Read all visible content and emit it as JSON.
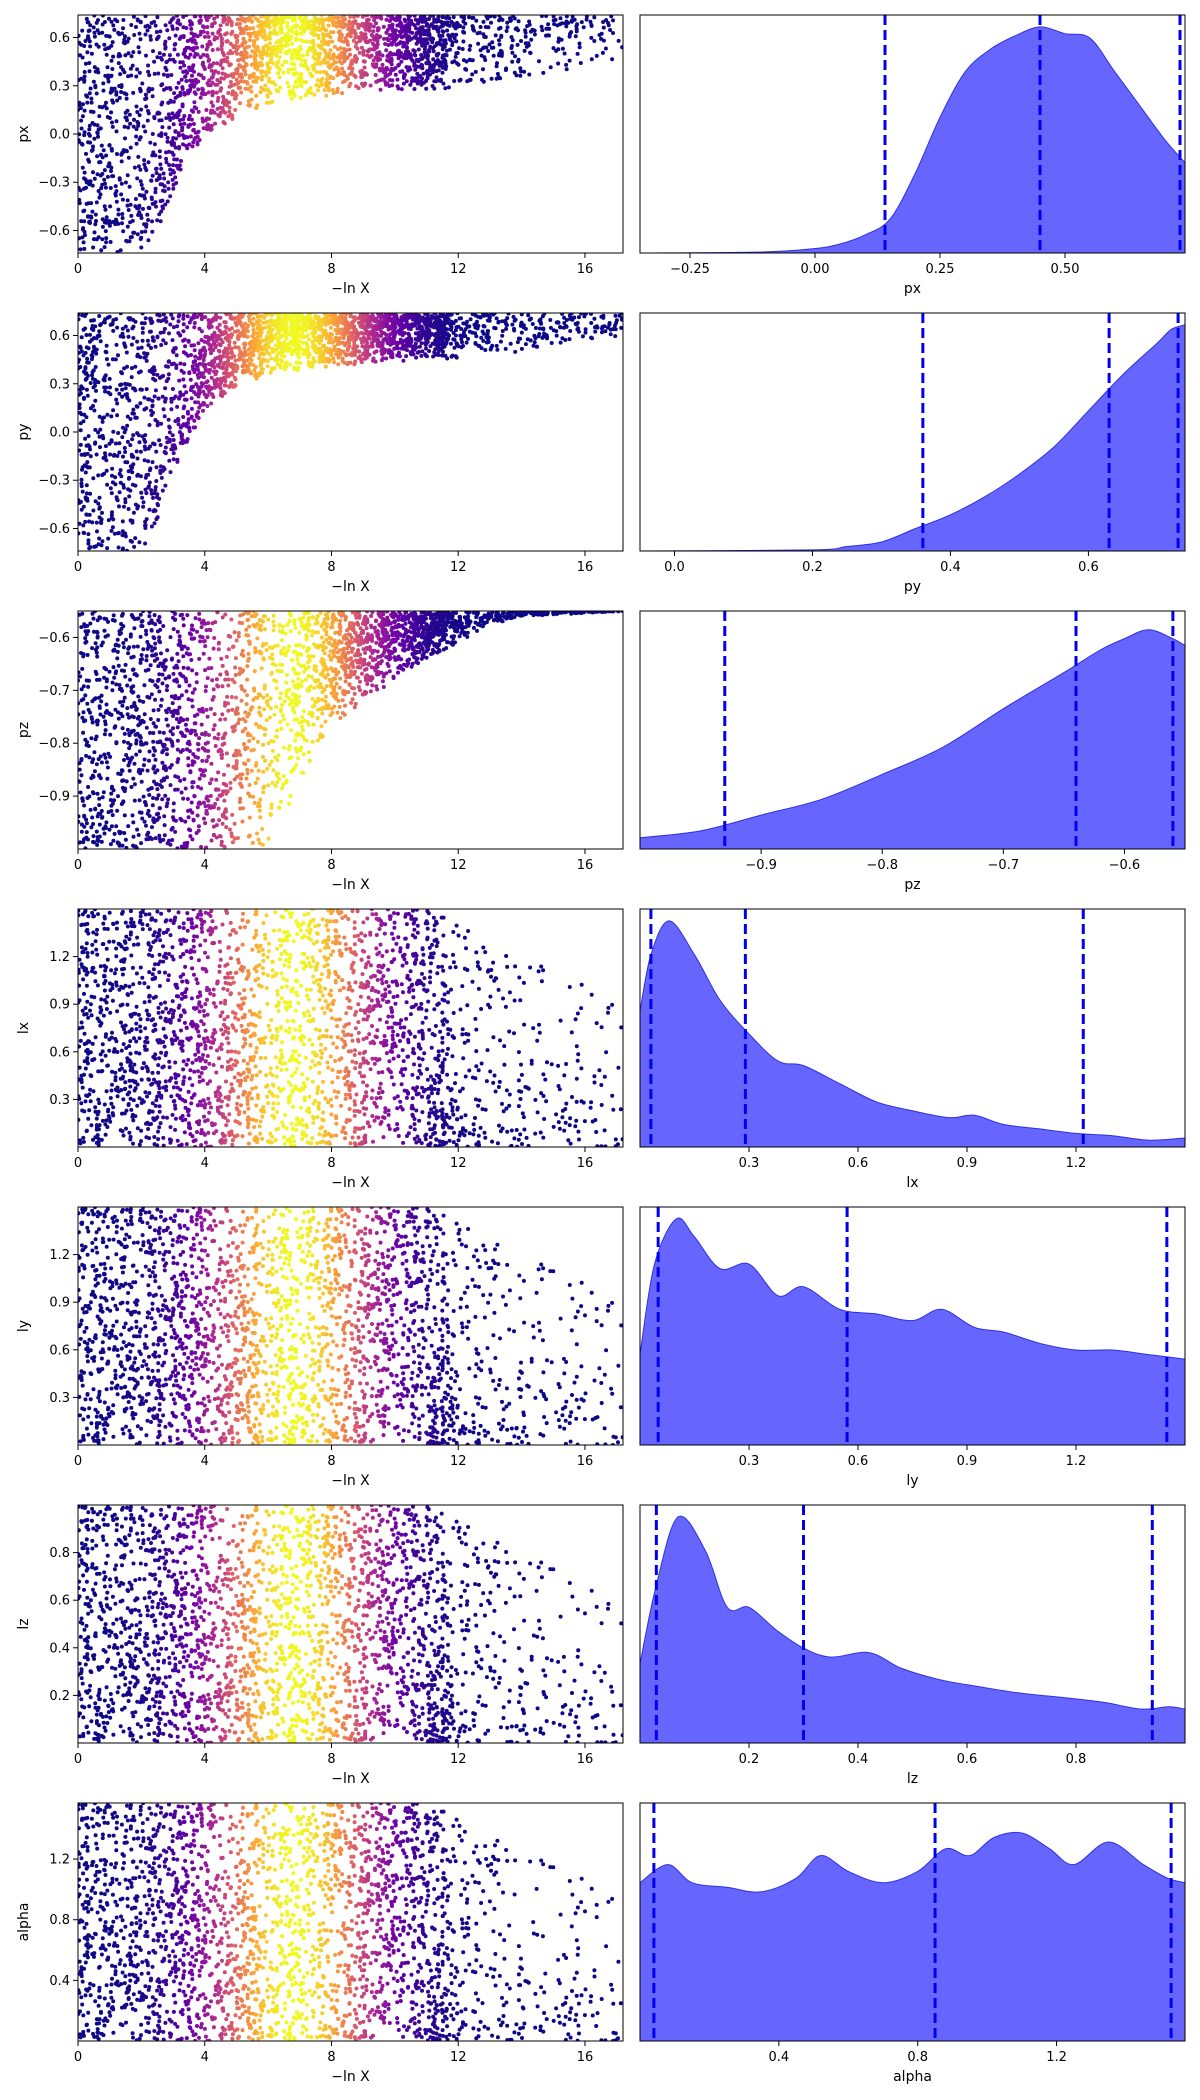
{
  "colors": {
    "marginal_fill": "#6666ff",
    "marginal_edge": "#2f2fe0",
    "quantile_line": "#0000ee",
    "colormap": [
      "#0d0887",
      "#6a00a8",
      "#b12a90",
      "#e16462",
      "#fca636",
      "#f0f921"
    ]
  },
  "chart_data": [
    {
      "type": "scatter",
      "param": "px",
      "ylabel": "px",
      "xlabel": "−ln X",
      "xlim": [
        0,
        17.2
      ],
      "ylim": [
        -0.74,
        0.74
      ],
      "xticks": [
        0,
        4,
        8,
        12,
        16
      ],
      "yticks": [
        -0.6,
        -0.3,
        0.0,
        0.3,
        0.6
      ],
      "ytick_labels": [
        "−0.6",
        "−0.3",
        "0.0",
        "0.3",
        "0.6"
      ],
      "envelope": [
        [
          0,
          -0.74
        ],
        [
          2,
          -0.74
        ],
        [
          2.5,
          -0.6
        ],
        [
          3,
          -0.35
        ],
        [
          3.5,
          -0.15
        ],
        [
          4,
          0.0
        ],
        [
          5,
          0.1
        ],
        [
          6,
          0.18
        ],
        [
          7,
          0.22
        ],
        [
          8,
          0.24
        ],
        [
          10,
          0.26
        ],
        [
          12,
          0.28
        ],
        [
          14,
          0.35
        ],
        [
          17.2,
          0.45
        ]
      ],
      "tail_end": 17.2,
      "color_peak": 6.8,
      "color_width": 2.6
    },
    {
      "type": "area",
      "param": "px",
      "xlabel": "px",
      "xlim": [
        -0.35,
        0.74
      ],
      "xticks": [
        -0.25,
        0.0,
        0.25,
        0.5
      ],
      "xtick_labels": [
        "−0.25",
        "0.00",
        "0.25",
        "0.50"
      ],
      "x": [
        -0.35,
        -0.1,
        0.0,
        0.05,
        0.1,
        0.15,
        0.2,
        0.25,
        0.3,
        0.35,
        0.4,
        0.45,
        0.5,
        0.55,
        0.6,
        0.65,
        0.7,
        0.74
      ],
      "y": [
        0,
        0.005,
        0.02,
        0.04,
        0.08,
        0.15,
        0.35,
        0.6,
        0.8,
        0.9,
        0.96,
        1.0,
        0.97,
        0.95,
        0.8,
        0.65,
        0.5,
        0.4
      ],
      "quantiles": [
        0.14,
        0.45,
        0.73
      ]
    },
    {
      "type": "scatter",
      "param": "py",
      "ylabel": "py",
      "xlabel": "−ln X",
      "xlim": [
        0,
        17.2
      ],
      "ylim": [
        -0.74,
        0.74
      ],
      "xticks": [
        0,
        4,
        8,
        12,
        16
      ],
      "yticks": [
        -0.6,
        -0.3,
        0.0,
        0.3,
        0.6
      ],
      "ytick_labels": [
        "−0.6",
        "−0.3",
        "0.0",
        "0.3",
        "0.6"
      ],
      "envelope": [
        [
          0,
          -0.74
        ],
        [
          2,
          -0.74
        ],
        [
          2.5,
          -0.55
        ],
        [
          3,
          -0.3
        ],
        [
          3.5,
          -0.05
        ],
        [
          4,
          0.15
        ],
        [
          5,
          0.28
        ],
        [
          6,
          0.34
        ],
        [
          7,
          0.38
        ],
        [
          8,
          0.4
        ],
        [
          10,
          0.44
        ],
        [
          12,
          0.46
        ],
        [
          14,
          0.5
        ],
        [
          17.2,
          0.6
        ]
      ],
      "tail_end": 17.2,
      "color_peak": 6.8,
      "color_width": 2.6
    },
    {
      "type": "area",
      "param": "py",
      "xlabel": "py",
      "xlim": [
        -0.05,
        0.74
      ],
      "xticks": [
        0.0,
        0.2,
        0.4,
        0.6
      ],
      "xtick_labels": [
        "0.0",
        "0.2",
        "0.4",
        "0.6"
      ],
      "x": [
        -0.05,
        0.2,
        0.25,
        0.3,
        0.35,
        0.4,
        0.45,
        0.5,
        0.55,
        0.6,
        0.65,
        0.7,
        0.72,
        0.74
      ],
      "y": [
        0,
        0.005,
        0.02,
        0.04,
        0.1,
        0.16,
        0.24,
        0.34,
        0.46,
        0.62,
        0.78,
        0.92,
        0.98,
        1.0
      ],
      "quantiles": [
        0.36,
        0.63,
        0.73
      ]
    },
    {
      "type": "scatter",
      "param": "pz",
      "ylabel": "pz",
      "xlabel": "−ln X",
      "xlim": [
        0,
        17.2
      ],
      "ylim": [
        -1.0,
        -0.55
      ],
      "xticks": [
        0,
        4,
        8,
        12,
        16
      ],
      "yticks": [
        -0.9,
        -0.8,
        -0.7,
        -0.6
      ],
      "ytick_labels": [
        "−0.9",
        "−0.8",
        "−0.7",
        "−0.6"
      ],
      "envelope": [
        [
          0,
          -1.0
        ],
        [
          6,
          -1.0
        ],
        [
          6.5,
          -0.95
        ],
        [
          7,
          -0.88
        ],
        [
          7.5,
          -0.82
        ],
        [
          8,
          -0.77
        ],
        [
          9,
          -0.72
        ],
        [
          10,
          -0.68
        ],
        [
          11,
          -0.64
        ],
        [
          12,
          -0.61
        ],
        [
          13,
          -0.58
        ],
        [
          14,
          -0.56
        ],
        [
          17.2,
          -0.55
        ]
      ],
      "tail_end": 17.2,
      "color_peak": 6.8,
      "color_width": 2.6
    },
    {
      "type": "area",
      "param": "pz",
      "xlabel": "pz",
      "xlim": [
        -1.0,
        -0.55
      ],
      "xticks": [
        -0.9,
        -0.8,
        -0.7,
        -0.6
      ],
      "xtick_labels": [
        "−0.9",
        "−0.8",
        "−0.7",
        "−0.6"
      ],
      "x": [
        -1.0,
        -0.95,
        -0.9,
        -0.85,
        -0.8,
        -0.75,
        -0.7,
        -0.65,
        -0.62,
        -0.6,
        -0.58,
        -0.56,
        -0.55
      ],
      "y": [
        0.05,
        0.08,
        0.15,
        0.22,
        0.33,
        0.45,
        0.62,
        0.78,
        0.88,
        0.93,
        0.97,
        0.93,
        0.9
      ],
      "quantiles": [
        -0.93,
        -0.64,
        -0.56
      ]
    },
    {
      "type": "scatter",
      "param": "lx",
      "ylabel": "lx",
      "xlabel": "−ln X",
      "xlim": [
        0,
        17.2
      ],
      "ylim": [
        0.0,
        1.5
      ],
      "xticks": [
        0,
        4,
        8,
        12,
        16
      ],
      "yticks": [
        0.3,
        0.6,
        0.9,
        1.2
      ],
      "ytick_labels": [
        "0.3",
        "0.6",
        "0.9",
        "1.2"
      ],
      "envelope": [
        [
          0,
          0
        ],
        [
          17.2,
          0
        ]
      ],
      "tail_end": 17.2,
      "color_peak": 6.8,
      "color_width": 2.6
    },
    {
      "type": "area",
      "param": "lx",
      "xlabel": "lx",
      "xlim": [
        0.0,
        1.5
      ],
      "xticks": [
        0.3,
        0.6,
        0.9,
        1.2
      ],
      "xtick_labels": [
        "0.3",
        "0.6",
        "0.9",
        "1.2"
      ],
      "x": [
        0.0,
        0.03,
        0.08,
        0.15,
        0.22,
        0.3,
        0.38,
        0.45,
        0.55,
        0.65,
        0.75,
        0.85,
        0.92,
        1.0,
        1.1,
        1.2,
        1.3,
        1.4,
        1.5
      ],
      "y": [
        0.6,
        0.85,
        1.0,
        0.85,
        0.65,
        0.5,
        0.38,
        0.36,
        0.28,
        0.2,
        0.16,
        0.13,
        0.14,
        0.1,
        0.08,
        0.06,
        0.05,
        0.03,
        0.04
      ],
      "quantiles": [
        0.03,
        0.29,
        1.22
      ]
    },
    {
      "type": "scatter",
      "param": "ly",
      "ylabel": "ly",
      "xlabel": "−ln X",
      "xlim": [
        0,
        17.2
      ],
      "ylim": [
        0.0,
        1.5
      ],
      "xticks": [
        0,
        4,
        8,
        12,
        16
      ],
      "yticks": [
        0.3,
        0.6,
        0.9,
        1.2
      ],
      "ytick_labels": [
        "0.3",
        "0.6",
        "0.9",
        "1.2"
      ],
      "envelope": [
        [
          0,
          0
        ],
        [
          17.2,
          0
        ]
      ],
      "tail_end": 17.2,
      "color_peak": 6.8,
      "color_width": 2.6
    },
    {
      "type": "area",
      "param": "ly",
      "xlabel": "ly",
      "xlim": [
        0.0,
        1.5
      ],
      "xticks": [
        0.3,
        0.6,
        0.9,
        1.2
      ],
      "xtick_labels": [
        "0.3",
        "0.6",
        "0.9",
        "1.2"
      ],
      "x": [
        0.0,
        0.04,
        0.1,
        0.15,
        0.22,
        0.3,
        0.38,
        0.45,
        0.55,
        0.65,
        0.75,
        0.83,
        0.92,
        1.0,
        1.1,
        1.2,
        1.3,
        1.4,
        1.5
      ],
      "y": [
        0.4,
        0.8,
        1.0,
        0.92,
        0.78,
        0.8,
        0.66,
        0.7,
        0.6,
        0.58,
        0.55,
        0.6,
        0.52,
        0.5,
        0.45,
        0.42,
        0.42,
        0.4,
        0.38
      ],
      "quantiles": [
        0.05,
        0.57,
        1.45
      ]
    },
    {
      "type": "scatter",
      "param": "lz",
      "ylabel": "lz",
      "xlabel": "−ln X",
      "xlim": [
        0,
        17.2
      ],
      "ylim": [
        0.0,
        1.0
      ],
      "xticks": [
        0,
        4,
        8,
        12,
        16
      ],
      "yticks": [
        0.2,
        0.4,
        0.6,
        0.8
      ],
      "ytick_labels": [
        "0.2",
        "0.4",
        "0.6",
        "0.8"
      ],
      "envelope": [
        [
          0,
          0
        ],
        [
          17.2,
          0
        ]
      ],
      "tail_end": 17.2,
      "color_peak": 6.8,
      "color_width": 2.6
    },
    {
      "type": "area",
      "param": "lz",
      "xlabel": "lz",
      "xlim": [
        0.0,
        1.0
      ],
      "xticks": [
        0.2,
        0.4,
        0.6,
        0.8
      ],
      "xtick_labels": [
        "0.2",
        "0.4",
        "0.6",
        "0.8"
      ],
      "x": [
        0.0,
        0.03,
        0.07,
        0.12,
        0.16,
        0.2,
        0.25,
        0.3,
        0.35,
        0.42,
        0.48,
        0.55,
        0.62,
        0.7,
        0.78,
        0.85,
        0.92,
        0.97,
        1.0
      ],
      "y": [
        0.35,
        0.7,
        1.0,
        0.85,
        0.6,
        0.6,
        0.5,
        0.42,
        0.38,
        0.4,
        0.33,
        0.28,
        0.25,
        0.22,
        0.2,
        0.18,
        0.15,
        0.16,
        0.15
      ],
      "quantiles": [
        0.03,
        0.3,
        0.94
      ]
    },
    {
      "type": "scatter",
      "param": "alpha",
      "ylabel": "alpha",
      "xlabel": "−ln X",
      "xlim": [
        0,
        17.2
      ],
      "ylim": [
        0.0,
        1.57
      ],
      "xticks": [
        0,
        4,
        8,
        12,
        16
      ],
      "yticks": [
        0.4,
        0.8,
        1.2
      ],
      "ytick_labels": [
        "0.4",
        "0.8",
        "1.2"
      ],
      "envelope": [
        [
          0,
          0
        ],
        [
          17.2,
          0
        ]
      ],
      "tail_end": 17.2,
      "color_peak": 6.8,
      "color_width": 2.6
    },
    {
      "type": "area",
      "param": "alpha",
      "xlabel": "alpha",
      "xlim": [
        0.0,
        1.57
      ],
      "xticks": [
        0.4,
        0.8,
        1.2
      ],
      "xtick_labels": [
        "0.4",
        "0.8",
        "1.2"
      ],
      "x": [
        0.0,
        0.08,
        0.15,
        0.25,
        0.35,
        0.45,
        0.52,
        0.6,
        0.7,
        0.8,
        0.88,
        0.95,
        1.02,
        1.1,
        1.18,
        1.25,
        1.35,
        1.45,
        1.52,
        1.57
      ],
      "y": [
        0.7,
        0.78,
        0.7,
        0.68,
        0.66,
        0.72,
        0.82,
        0.75,
        0.7,
        0.75,
        0.85,
        0.82,
        0.9,
        0.92,
        0.85,
        0.78,
        0.88,
        0.78,
        0.72,
        0.7
      ],
      "quantiles": [
        0.04,
        0.85,
        1.53
      ]
    }
  ]
}
